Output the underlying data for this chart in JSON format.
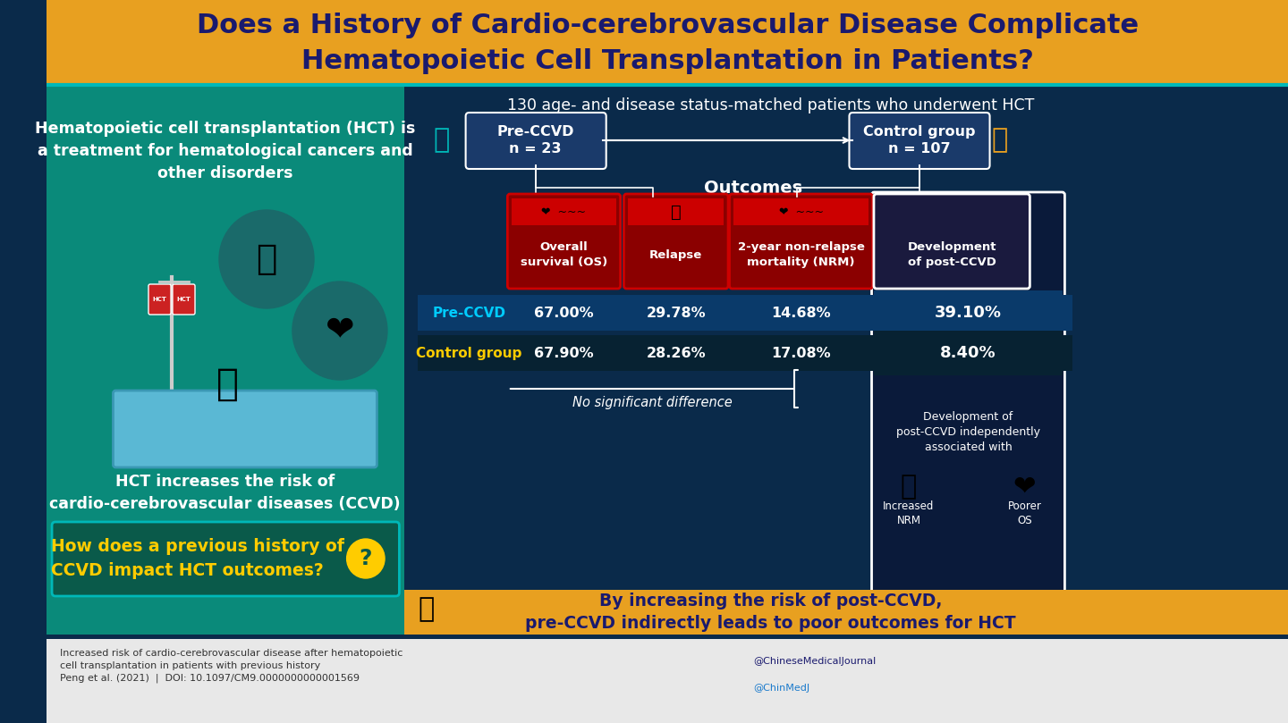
{
  "title_line1": "Does a History of Cardio-cerebrovascular Disease Complicate",
  "title_line2": "Hematopoietic Cell Transplantation in Patients?",
  "title_bg": "#E8A020",
  "title_color": "#1a1a6e",
  "left_panel_bg": "#0a8a7a",
  "right_panel_bg": "#0a2a4a",
  "left_text1": "Hematopoietic cell transplantation (HCT) is\na treatment for hematological cancers and\nother disorders",
  "left_text2": "HCT increases the risk of\ncardio-cerebrovascular diseases (CCVD)",
  "left_bottom_text": "How does a previous history of\nCCVD impact HCT outcomes?",
  "left_bottom_bg": "#0a5a4a",
  "study_header": "130 age- and disease status-matched patients who underwent HCT",
  "pre_ccvd_label": "Pre-CCVD\nn = 23",
  "control_label": "Control group\nn = 107",
  "outcomes_label": "Outcomes",
  "outcome_cols": [
    "Overall\nsurvival (OS)",
    "Relapse",
    "2-year non-relapse\nmortality (NRM)",
    "Development\nof post-CCVD"
  ],
  "pre_ccvd_values": [
    "67.00%",
    "29.78%",
    "14.68%",
    "39.10%"
  ],
  "control_values": [
    "67.90%",
    "28.26%",
    "17.08%",
    "8.40%"
  ],
  "no_sig_diff": "No significant difference",
  "post_ccvd_note": "Development of\npost-CCVD independently\nassociated with",
  "increased_nrm": "Increased\nNRM",
  "poorer_os": "Poorer\nOS",
  "bottom_right_text": "By increasing the risk of post-CCVD,\npre-CCVD indirectly leads to poor outcomes for HCT",
  "bottom_right_bg": "#E8A020",
  "footer_left": "Increased risk of cardio-cerebrovascular disease after hematopoietic\ncell transplantation in patients with previous history\nPeng et al. (2021)  |  DOI: 10.1097/CM9.0000000000001569",
  "footer_bg": "#f0f0f0",
  "outcome_box_colors": [
    "#8B0000",
    "#8B0000",
    "#8B0000",
    "#1a1a3e"
  ],
  "outcome_border_colors": [
    "#cc0000",
    "#cc0000",
    "#cc0000",
    "#ffffff"
  ],
  "pre_ccvd_row_color": "#0a5a8a",
  "control_row_color": "#0a3a5a",
  "row_label_pre": "Pre-CCVD",
  "row_label_control": "Control group",
  "pre_ccvd_label_color": "#00ccff",
  "control_label_color": "#ffcc00"
}
